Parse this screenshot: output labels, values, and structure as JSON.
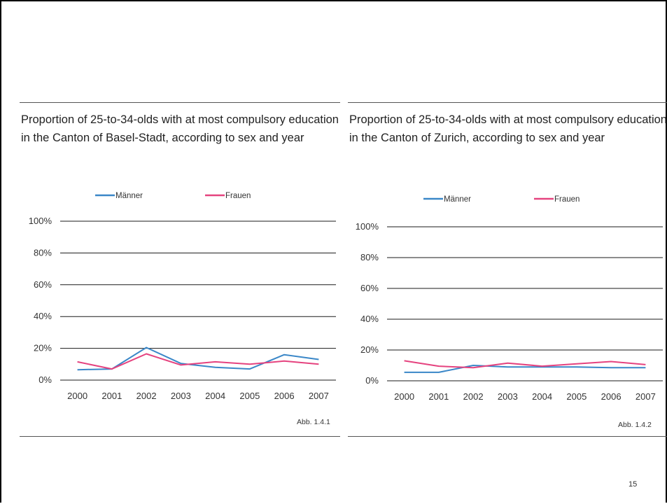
{
  "page_number": "15",
  "colors": {
    "maenner": "#3a87c8",
    "frauen": "#e5437f",
    "grid": "#1a1a1a",
    "rule": "#555555"
  },
  "panels": [
    {
      "title": "Proportion of 25-to-34-olds with at most compulsory education in the Canton of Basel-Stadt, according to sex and year",
      "caption": "Abb. 1.4.1"
    },
    {
      "title": "Proportion of 25-to-34-olds with at most compulsory education in the Canton of Zurich, according to sex and year",
      "caption": "Abb. 1.4.2"
    }
  ],
  "chart_data": [
    {
      "type": "line",
      "title": "Proportion of 25-to-34-olds with at most compulsory education in the Canton of Basel-Stadt, according to sex and year",
      "x": [
        "2000",
        "2001",
        "2002",
        "2003",
        "2004",
        "2005",
        "2006",
        "2007"
      ],
      "ylim": [
        0,
        100
      ],
      "yticks": [
        "0%",
        "20%",
        "40%",
        "60%",
        "80%",
        "100%"
      ],
      "grid": true,
      "legend": "top",
      "series": [
        {
          "name": "Männer",
          "color": "#3a87c8",
          "values": [
            6.5,
            7,
            20.5,
            10.5,
            8,
            7,
            16,
            13
          ]
        },
        {
          "name": "Frauen",
          "color": "#e5437f",
          "values": [
            11.5,
            7,
            16.5,
            9.5,
            11.5,
            10,
            12,
            10
          ]
        }
      ]
    },
    {
      "type": "line",
      "title": "Proportion of 25-to-34-olds with at most compulsory education in the Canton of Zurich, according to sex and year",
      "x": [
        "2000",
        "2001",
        "2002",
        "2003",
        "2004",
        "2005",
        "2006",
        "2007"
      ],
      "ylim": [
        0,
        100
      ],
      "yticks": [
        "0%",
        "20%",
        "40%",
        "60%",
        "80%",
        "100%"
      ],
      "grid": true,
      "legend": "top",
      "series": [
        {
          "name": "Männer",
          "color": "#3a87c8",
          "values": [
            5.5,
            5.5,
            10,
            9,
            9,
            9,
            8.5,
            8.5
          ]
        },
        {
          "name": "Frauen",
          "color": "#e5437f",
          "values": [
            13,
            9.5,
            8.5,
            11.5,
            9.5,
            11,
            12.5,
            10.5
          ]
        }
      ]
    }
  ]
}
